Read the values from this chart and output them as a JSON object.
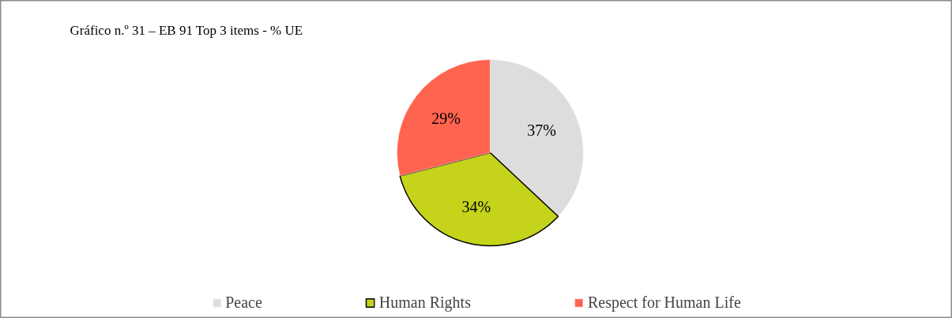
{
  "chart_data": {
    "type": "pie",
    "title": "Gráfico n.º 31 – EB 91 Top 3 items - % UE",
    "categories": [
      "Peace",
      "Human Rights",
      "Respect for Human Life"
    ],
    "values": [
      37,
      34,
      29
    ],
    "colors": [
      "#dddddd",
      "#c5d41b",
      "#ff6450"
    ],
    "value_labels": [
      "37%",
      "34%",
      "29%"
    ],
    "legend": "bottom"
  }
}
